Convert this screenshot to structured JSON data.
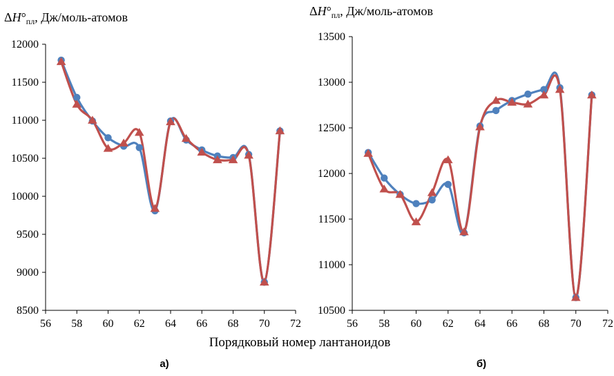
{
  "figure": {
    "xlabel": "Порядковый номер лантаноидов"
  },
  "colors": {
    "series_blue": "#4F81BD",
    "series_red": "#C0504D",
    "axis": "#000000"
  },
  "chart_data": [
    {
      "type": "line",
      "panel_label": "а)",
      "ytitle": {
        "delta": "Δ",
        "symbol": "H",
        "degree": "°",
        "subscript": "пл",
        "unit": ", Дж/моль-атомов"
      },
      "xlim": [
        56,
        72
      ],
      "xticks": [
        56,
        58,
        60,
        62,
        64,
        66,
        68,
        70,
        72
      ],
      "ylim": [
        8500,
        12000
      ],
      "yticks": [
        8500,
        9000,
        9500,
        10000,
        10500,
        11000,
        11500,
        12000
      ],
      "grid": false,
      "series": [
        {
          "marker": "circle",
          "color": "#4F81BD",
          "points": [
            {
              "x": 57,
              "y": 11790
            },
            {
              "x": 58,
              "y": 11300
            },
            {
              "x": 59,
              "y": 10990
            },
            {
              "x": 60,
              "y": 10770
            },
            {
              "x": 61,
              "y": 10660
            },
            {
              "x": 62,
              "y": 10640
            },
            {
              "x": 63,
              "y": 9810
            },
            {
              "x": 64,
              "y": 10990
            },
            {
              "x": 65,
              "y": 10740
            },
            {
              "x": 66,
              "y": 10610
            },
            {
              "x": 67,
              "y": 10530
            },
            {
              "x": 68,
              "y": 10510
            },
            {
              "x": 69,
              "y": 10550
            },
            {
              "x": 70,
              "y": 8870
            },
            {
              "x": 71,
              "y": 10860
            }
          ]
        },
        {
          "marker": "triangle",
          "color": "#C0504D",
          "points": [
            {
              "x": 57,
              "y": 11770
            },
            {
              "x": 58,
              "y": 11210
            },
            {
              "x": 59,
              "y": 11000
            },
            {
              "x": 60,
              "y": 10630
            },
            {
              "x": 61,
              "y": 10700
            },
            {
              "x": 62,
              "y": 10840
            },
            {
              "x": 63,
              "y": 9840
            },
            {
              "x": 64,
              "y": 10980
            },
            {
              "x": 65,
              "y": 10760
            },
            {
              "x": 66,
              "y": 10580
            },
            {
              "x": 67,
              "y": 10480
            },
            {
              "x": 68,
              "y": 10480
            },
            {
              "x": 69,
              "y": 10540
            },
            {
              "x": 70,
              "y": 8870
            },
            {
              "x": 71,
              "y": 10860
            }
          ]
        }
      ]
    },
    {
      "type": "line",
      "panel_label": "б)",
      "ytitle": {
        "delta": "Δ",
        "symbol": "H",
        "degree": "°",
        "subscript": "пл",
        "unit": ", Дж/моль-атомов"
      },
      "xlim": [
        56,
        72
      ],
      "xticks": [
        56,
        58,
        60,
        62,
        64,
        66,
        68,
        70,
        72
      ],
      "ylim": [
        10500,
        13500
      ],
      "yticks": [
        10500,
        11000,
        11500,
        12000,
        12500,
        13000,
        13500
      ],
      "grid": false,
      "series": [
        {
          "marker": "circle",
          "color": "#4F81BD",
          "points": [
            {
              "x": 57,
              "y": 12230
            },
            {
              "x": 58,
              "y": 11950
            },
            {
              "x": 59,
              "y": 11770
            },
            {
              "x": 60,
              "y": 11670
            },
            {
              "x": 61,
              "y": 11710
            },
            {
              "x": 62,
              "y": 11880
            },
            {
              "x": 63,
              "y": 11350
            },
            {
              "x": 64,
              "y": 12520
            },
            {
              "x": 65,
              "y": 12690
            },
            {
              "x": 66,
              "y": 12800
            },
            {
              "x": 67,
              "y": 12870
            },
            {
              "x": 68,
              "y": 12920
            },
            {
              "x": 69,
              "y": 12940
            },
            {
              "x": 70,
              "y": 10640
            },
            {
              "x": 71,
              "y": 12860
            }
          ]
        },
        {
          "marker": "triangle",
          "color": "#C0504D",
          "points": [
            {
              "x": 57,
              "y": 12220
            },
            {
              "x": 58,
              "y": 11830
            },
            {
              "x": 59,
              "y": 11770
            },
            {
              "x": 60,
              "y": 11470
            },
            {
              "x": 61,
              "y": 11790
            },
            {
              "x": 62,
              "y": 12150
            },
            {
              "x": 63,
              "y": 11360
            },
            {
              "x": 64,
              "y": 12510
            },
            {
              "x": 65,
              "y": 12800
            },
            {
              "x": 66,
              "y": 12780
            },
            {
              "x": 67,
              "y": 12760
            },
            {
              "x": 68,
              "y": 12860
            },
            {
              "x": 69,
              "y": 12920
            },
            {
              "x": 70,
              "y": 10640
            },
            {
              "x": 71,
              "y": 12860
            }
          ]
        }
      ]
    }
  ]
}
